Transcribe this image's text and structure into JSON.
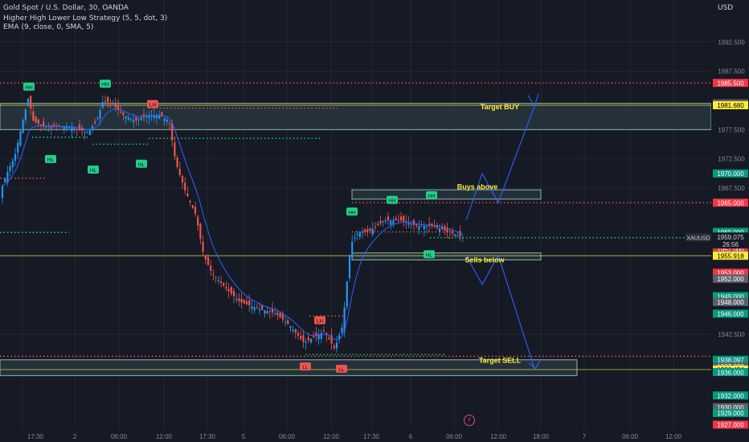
{
  "header": {
    "title": "Gold Spot / U.S. Dollar, 30, OANDA",
    "indicator1": "Higher High Lower Low Strategy (5, 5, dot, 3)",
    "indicator2": "EMA (9, close, 0, SMA, 5)",
    "currency": "USD"
  },
  "chart_data": {
    "type": "candlestick",
    "symbol": "XAUUSD",
    "timeframe": "30",
    "ylim": [
      1926.5,
      1999.0
    ],
    "y_ticks": [
      "1992.500",
      "1987.500",
      "1977.500",
      "1972.500",
      "1967.500",
      "1942.500"
    ],
    "x_ticks": [
      "17:30",
      "2",
      "06:00",
      "12:00",
      "17:30",
      "5",
      "06:00",
      "12:00",
      "17:30",
      "6",
      "06:00",
      "12:00",
      "18:00",
      "7",
      "06:00",
      "12:00"
    ],
    "price_badges": [
      {
        "label": "1985.500",
        "color": "#f23645"
      },
      {
        "label": "1982.000",
        "color": "#5d606b"
      },
      {
        "label": "1981.680",
        "color": "#ffeb3b"
      },
      {
        "label": "1970.000",
        "color": "#089981"
      },
      {
        "label": "1965.000",
        "color": "#f23645"
      },
      {
        "label": "1960.000",
        "color": "#5d606b"
      },
      {
        "label": "1960.000",
        "color": "#089981"
      },
      {
        "label": "1957.000",
        "color": "#f23645"
      },
      {
        "label": "1956.000",
        "color": "#089981"
      },
      {
        "label": "1955.918",
        "color": "#ffeb3b"
      },
      {
        "label": "1953.000",
        "color": "#f23645"
      },
      {
        "label": "1952.001",
        "color": "#f23645"
      },
      {
        "label": "1952.000",
        "color": "#5d606b"
      },
      {
        "label": "1952.000",
        "color": "#5d606b"
      },
      {
        "label": "1949.000",
        "color": "#089981"
      },
      {
        "label": "1948.000",
        "color": "#5d606b"
      },
      {
        "label": "1946.000",
        "color": "#089981"
      },
      {
        "label": "1938.097",
        "color": "#089981"
      },
      {
        "label": "1937.000",
        "color": "#5d606b"
      },
      {
        "label": "1936.434",
        "color": "#ffeb3b"
      },
      {
        "label": "1936.000",
        "color": "#089981"
      },
      {
        "label": "1932.000",
        "color": "#089981"
      },
      {
        "label": "1930.000",
        "color": "#5d606b"
      },
      {
        "label": "1929.000",
        "color": "#089981"
      },
      {
        "label": "1927.000",
        "color": "#f23645"
      }
    ],
    "current_price": {
      "symbol_label": "XAUUSD",
      "price": "1959.075",
      "countdown": "26:56"
    },
    "hhll_labels": [
      {
        "text": "HH",
        "kind": "high"
      },
      {
        "text": "HH",
        "kind": "high"
      },
      {
        "text": "LH",
        "kind": "lowhigh"
      },
      {
        "text": "HL",
        "kind": "low"
      },
      {
        "text": "HL",
        "kind": "low"
      },
      {
        "text": "HL",
        "kind": "low"
      },
      {
        "text": "LH",
        "kind": "lowhigh"
      },
      {
        "text": "LL",
        "kind": "lowlow"
      },
      {
        "text": "LL",
        "kind": "lowlow"
      },
      {
        "text": "HH",
        "kind": "high"
      },
      {
        "text": "HH",
        "kind": "high"
      },
      {
        "text": "HH",
        "kind": "high"
      },
      {
        "text": "HL",
        "kind": "low"
      }
    ],
    "annotations": [
      "Target BUY",
      "Buys above",
      "Sells below",
      "Target SELL"
    ],
    "colors": {
      "up": "#2196f3",
      "down": "#ef5350",
      "ema": "#2962ff",
      "projection": "#2962ff",
      "zone_fill": "#2a3a42",
      "zone_border": "#8fb5b0",
      "yellow": "#ffeb3b"
    }
  }
}
